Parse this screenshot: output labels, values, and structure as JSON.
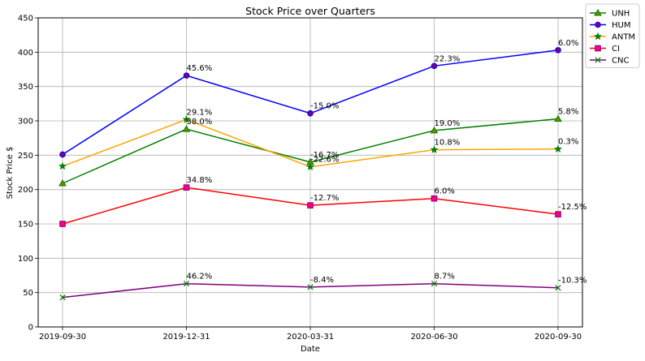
{
  "chart_data": {
    "type": "line",
    "title": "Stock Price over Quarters",
    "xlabel": "Date",
    "ylabel": "Stock Price $",
    "categories": [
      "2019-09-30",
      "2019-12-31",
      "2020-03-31",
      "2020-06-30",
      "2020-09-30"
    ],
    "ylim": [
      0,
      450
    ],
    "yticks": [
      0,
      50,
      100,
      150,
      200,
      250,
      300,
      350,
      400,
      450
    ],
    "grid": true,
    "legend_position": "outside-top-right",
    "series": [
      {
        "name": "UNH",
        "values": [
          209,
          288,
          240,
          286,
          303
        ],
        "labels": [
          "",
          "38.0%",
          "-16.7%",
          "19.0%",
          "5.8%"
        ],
        "line_color": "#008000",
        "marker": "triangle",
        "marker_face": "#808000",
        "marker_edge": "#008000"
      },
      {
        "name": "HUM",
        "values": [
          251,
          366,
          311,
          380,
          403
        ],
        "labels": [
          "",
          "45.6%",
          "-15.0%",
          "22.3%",
          "6.0%"
        ],
        "line_color": "#0000ff",
        "marker": "circle",
        "marker_face": "#800080",
        "marker_edge": "#0000ff"
      },
      {
        "name": "ANTM",
        "values": [
          234,
          302,
          233,
          258,
          259
        ],
        "labels": [
          "",
          "29.1%",
          "-22.6%",
          "10.8%",
          "0.3%"
        ],
        "line_color": "#ffa500",
        "marker": "star",
        "marker_face": "#008000",
        "marker_edge": "#008000"
      },
      {
        "name": "CI",
        "values": [
          150,
          203,
          177,
          187,
          164
        ],
        "labels": [
          "",
          "34.8%",
          "-12.7%",
          "6.0%",
          "-12.5%"
        ],
        "line_color": "#ff0000",
        "marker": "square",
        "marker_face": "#ff0080",
        "marker_edge": "#800080"
      },
      {
        "name": "CNC",
        "values": [
          43,
          63,
          58,
          63,
          57
        ],
        "labels": [
          "",
          "46.2%",
          "-8.4%",
          "8.7%",
          "-10.3%"
        ],
        "line_color": "#800080",
        "marker": "x",
        "marker_face": "#008000",
        "marker_edge": "#008000"
      }
    ]
  }
}
